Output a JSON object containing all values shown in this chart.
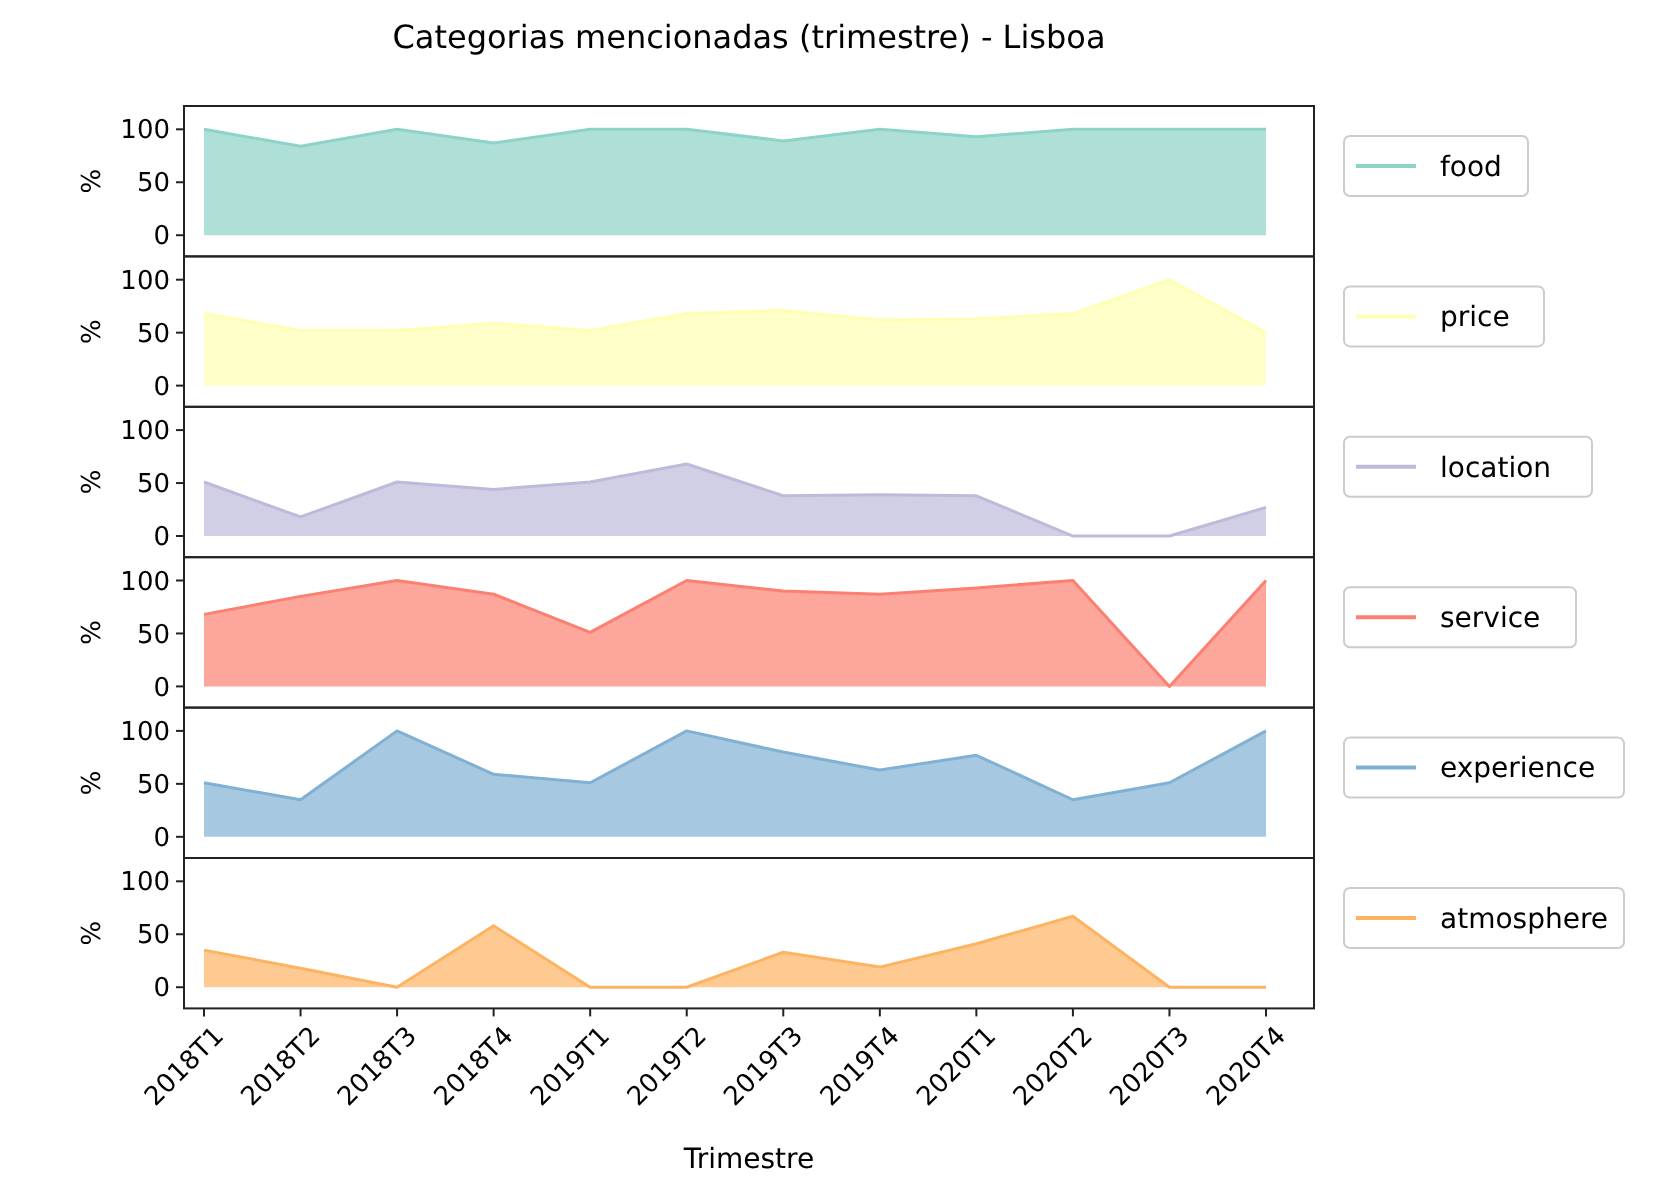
{
  "chart_data": [
    {
      "type": "area",
      "title": "Categorias mencionadas (trimestre) - Lisboa",
      "ylabel": "%",
      "categories": [
        "2018T1",
        "2018T2",
        "2018T3",
        "2018T4",
        "2019T1",
        "2019T2",
        "2019T3",
        "2019T4",
        "2020T1",
        "2020T2",
        "2020T3",
        "2020T4"
      ],
      "ylim": [
        -20,
        122
      ],
      "yticks": [
        0,
        50,
        100
      ],
      "tick_labels": "y",
      "legend": "right",
      "series": [
        {
          "name": "food",
          "color": "#8dd3c7",
          "values": [
            100,
            84,
            100,
            87,
            100,
            100,
            89,
            100,
            93,
            100,
            100,
            100
          ]
        }
      ]
    },
    {
      "type": "area",
      "ylabel": "%",
      "categories": [
        "2018T1",
        "2018T2",
        "2018T3",
        "2018T4",
        "2019T1",
        "2019T2",
        "2019T3",
        "2019T4",
        "2020T1",
        "2020T2",
        "2020T3",
        "2020T4"
      ],
      "ylim": [
        -20,
        122
      ],
      "yticks": [
        0,
        50,
        100
      ],
      "tick_labels": "y",
      "legend": "right",
      "series": [
        {
          "name": "price",
          "color": "#ffffb3",
          "values": [
            68,
            52,
            52,
            59,
            52,
            68,
            71,
            62,
            63,
            68,
            100,
            50
          ]
        }
      ]
    },
    {
      "type": "area",
      "ylabel": "%",
      "categories": [
        "2018T1",
        "2018T2",
        "2018T3",
        "2018T4",
        "2019T1",
        "2019T2",
        "2019T3",
        "2019T4",
        "2020T1",
        "2020T2",
        "2020T3",
        "2020T4"
      ],
      "ylim": [
        -20,
        122
      ],
      "yticks": [
        0,
        50,
        100
      ],
      "tick_labels": "y",
      "legend": "right",
      "series": [
        {
          "name": "location",
          "color": "#bebada",
          "values": [
            51,
            18,
            51,
            44,
            51,
            68,
            38,
            39,
            38,
            0,
            0,
            27
          ]
        }
      ]
    },
    {
      "type": "area",
      "ylabel": "%",
      "categories": [
        "2018T1",
        "2018T2",
        "2018T3",
        "2018T4",
        "2019T1",
        "2019T2",
        "2019T3",
        "2019T4",
        "2020T1",
        "2020T2",
        "2020T3",
        "2020T4"
      ],
      "ylim": [
        -20,
        122
      ],
      "yticks": [
        0,
        50,
        100
      ],
      "tick_labels": "y",
      "legend": "right",
      "series": [
        {
          "name": "service",
          "color": "#fb8072",
          "values": [
            68,
            85,
            100,
            87,
            51,
            100,
            90,
            87,
            93,
            100,
            0,
            100
          ]
        }
      ]
    },
    {
      "type": "area",
      "ylabel": "%",
      "categories": [
        "2018T1",
        "2018T2",
        "2018T3",
        "2018T4",
        "2019T1",
        "2019T2",
        "2019T3",
        "2019T4",
        "2020T1",
        "2020T2",
        "2020T3",
        "2020T4"
      ],
      "ylim": [
        -20,
        122
      ],
      "yticks": [
        0,
        50,
        100
      ],
      "tick_labels": "y",
      "legend": "right",
      "series": [
        {
          "name": "experience",
          "color": "#80b1d3",
          "values": [
            51,
            35,
            100,
            59,
            51,
            100,
            80,
            63,
            77,
            35,
            51,
            100
          ]
        }
      ]
    },
    {
      "type": "area",
      "ylabel": "%",
      "xlabel": "Trimestre",
      "categories": [
        "2018T1",
        "2018T2",
        "2018T3",
        "2018T4",
        "2019T1",
        "2019T2",
        "2019T3",
        "2019T4",
        "2020T1",
        "2020T2",
        "2020T3",
        "2020T4"
      ],
      "ylim": [
        -20,
        122
      ],
      "yticks": [
        0,
        50,
        100
      ],
      "legend": "right",
      "series": [
        {
          "name": "atmosphere",
          "color": "#fdb462",
          "values": [
            35,
            18,
            0,
            58,
            0,
            0,
            33,
            19,
            41,
            67,
            0,
            0
          ]
        }
      ]
    }
  ]
}
